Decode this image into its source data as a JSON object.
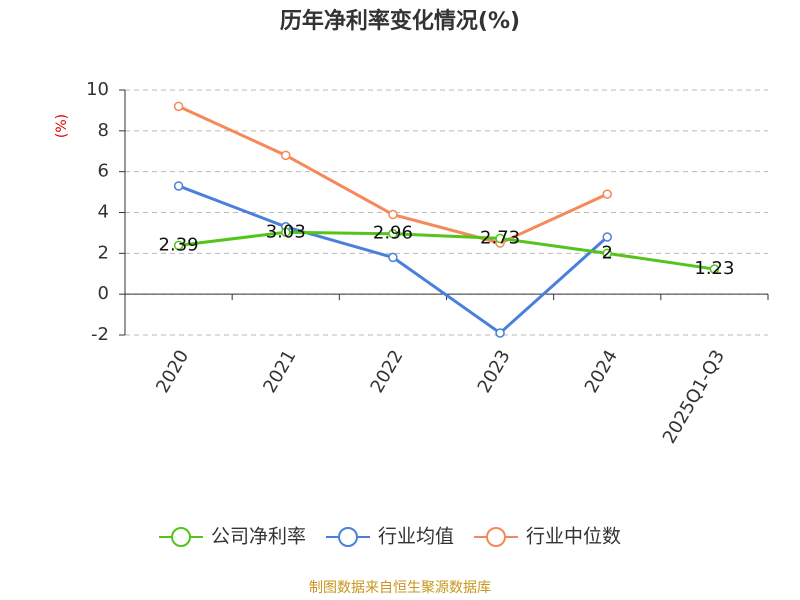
{
  "chart_data": {
    "type": "line",
    "title": "历年净利率变化情况(%)",
    "y_label": "(%)",
    "categories": [
      "2020",
      "2021",
      "2022",
      "2023",
      "2024",
      "2025Q1-Q3"
    ],
    "series": [
      {
        "name": "公司净利率",
        "color": "#52c41a",
        "values": [
          2.39,
          3.03,
          2.96,
          2.73,
          2,
          1.23
        ],
        "show_labels": true
      },
      {
        "name": "行业均值",
        "color": "#4a7fdb",
        "values": [
          5.3,
          3.3,
          1.8,
          -1.9,
          2.8,
          null
        ]
      },
      {
        "name": "行业中位数",
        "color": "#f5895a",
        "values": [
          9.2,
          6.8,
          3.9,
          2.5,
          4.9,
          null
        ]
      }
    ],
    "ylim": [
      -2,
      10
    ],
    "yticks": [
      -2,
      0,
      2,
      4,
      6,
      8,
      10
    ],
    "grid": true,
    "source": "制图数据来自恒生聚源数据库"
  }
}
